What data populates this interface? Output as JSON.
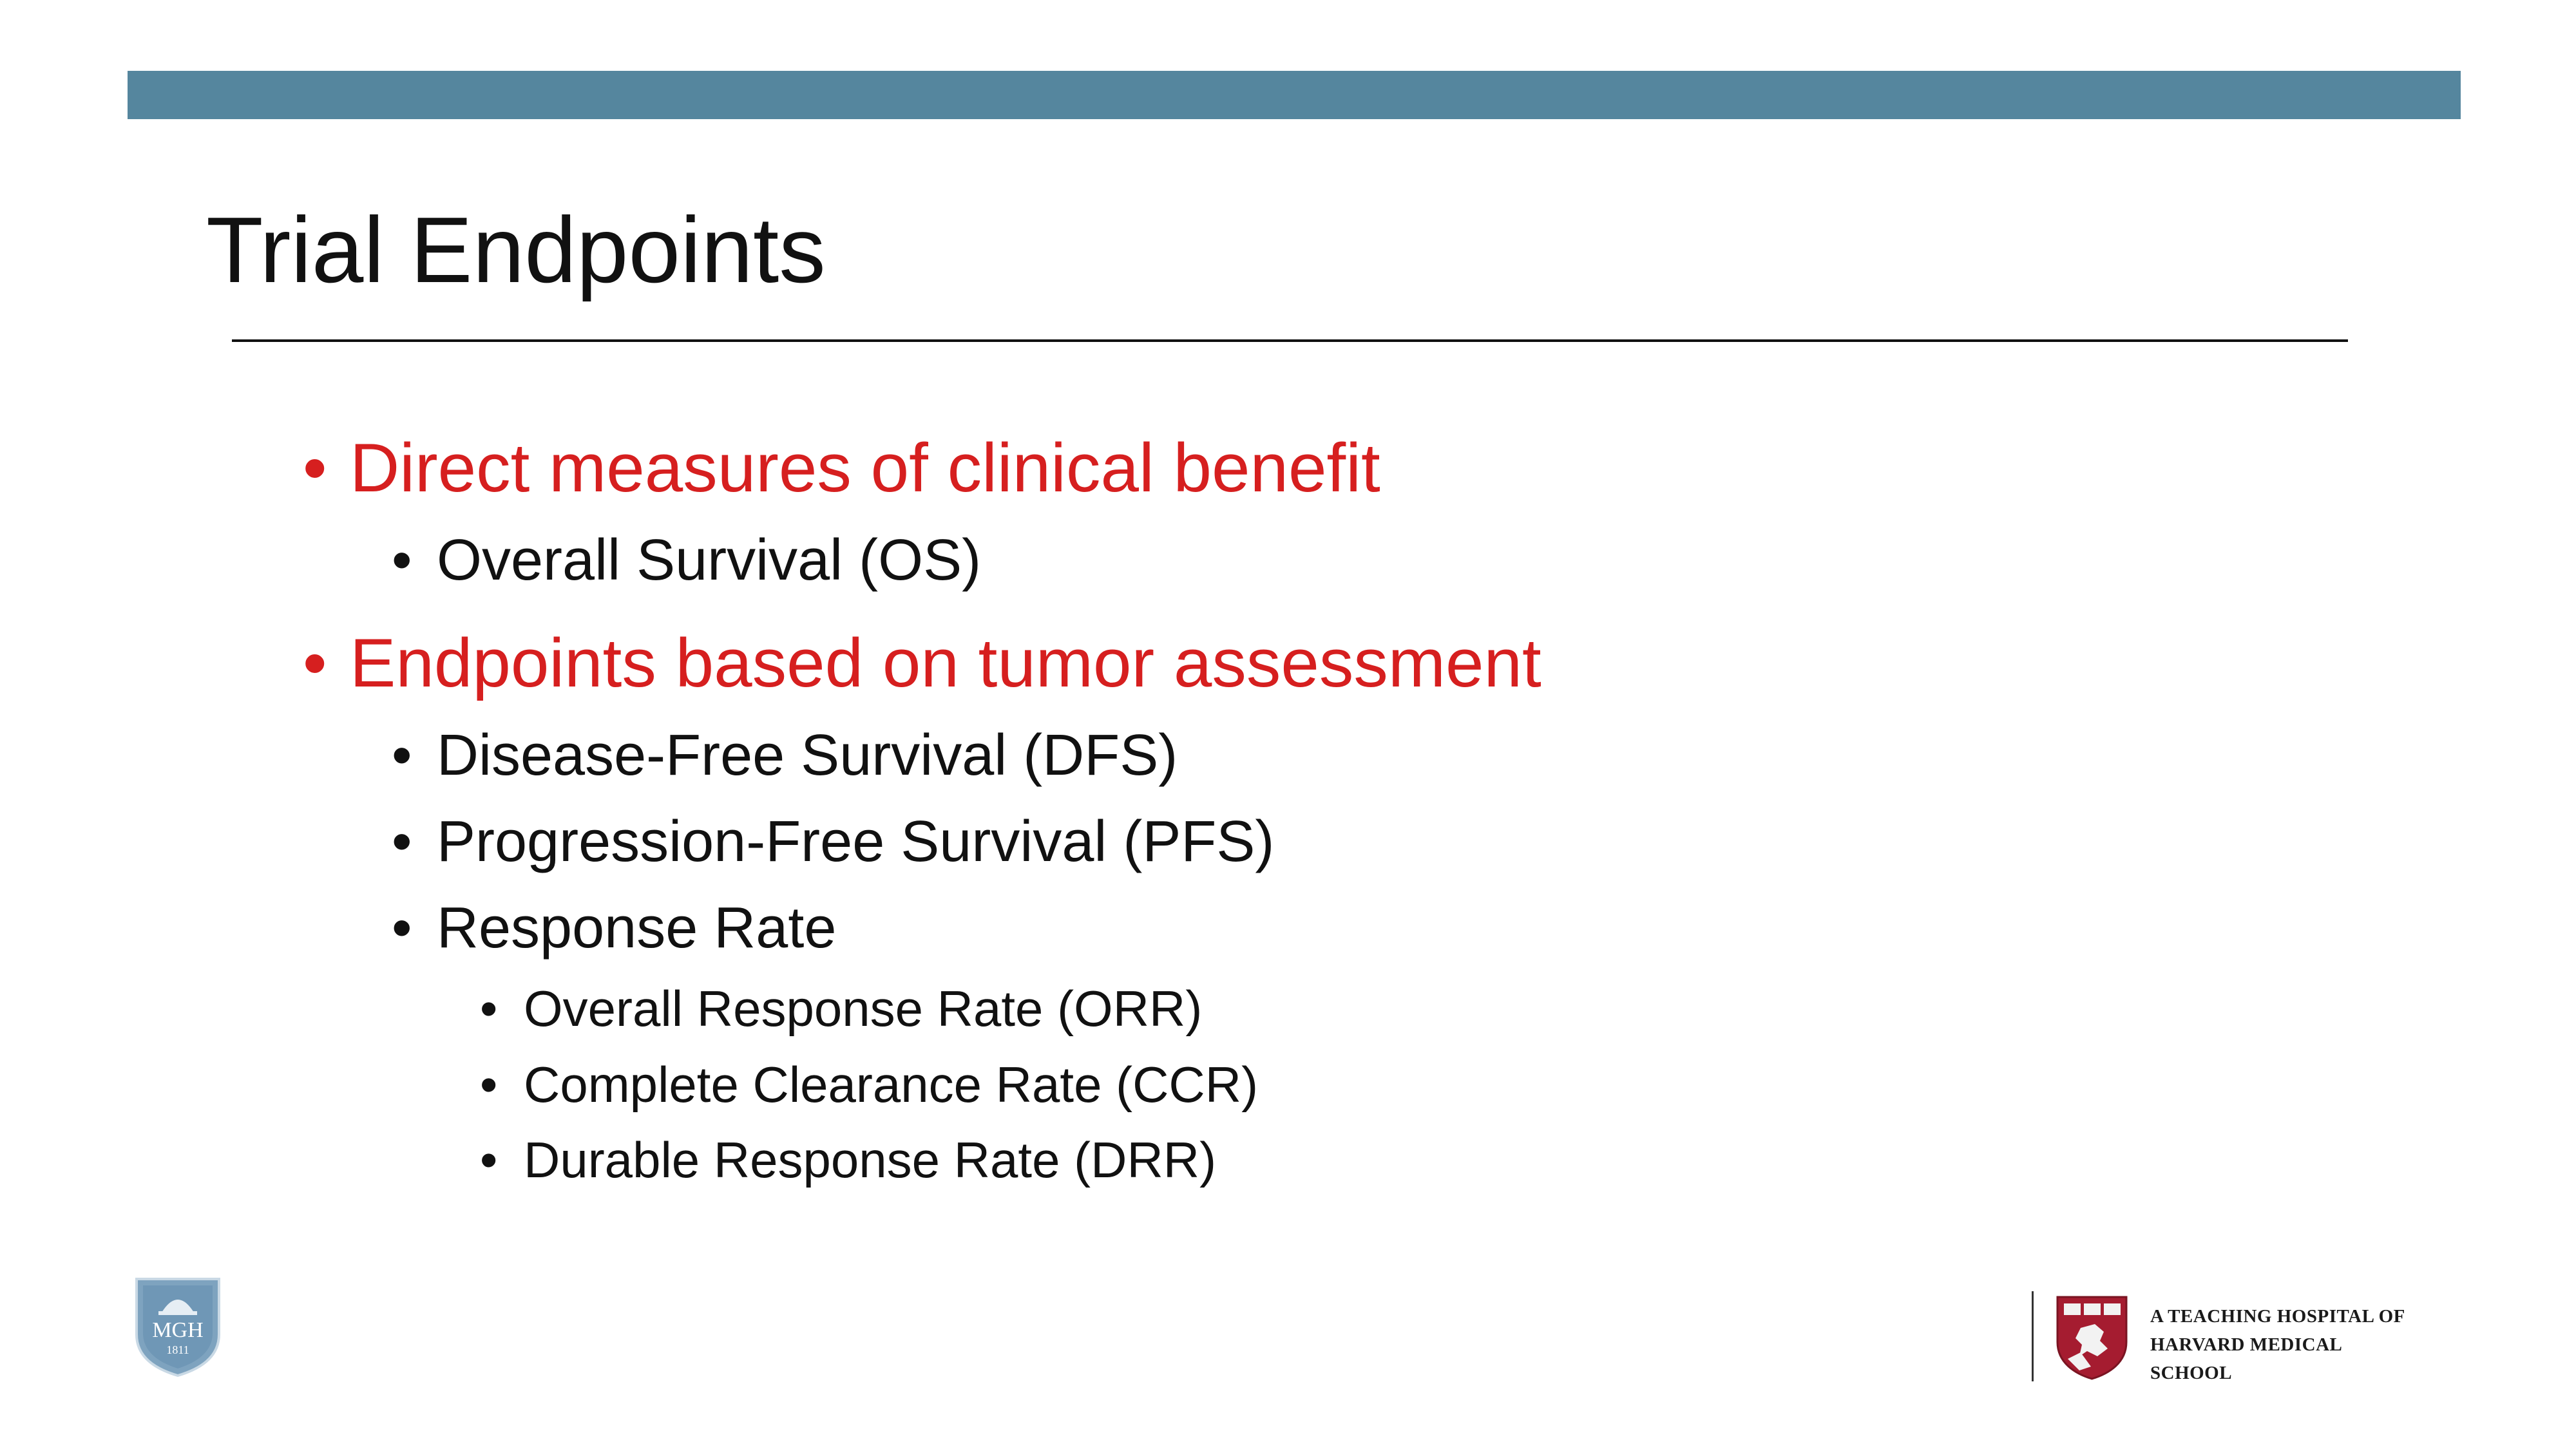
{
  "slide": {
    "title": "Trial Endpoints",
    "bullets": [
      {
        "level": 1,
        "text": "Direct measures of clinical benefit"
      },
      {
        "level": 2,
        "text": "Overall Survival (OS)"
      },
      {
        "level": 1,
        "text": "Endpoints based on tumor assessment"
      },
      {
        "level": 2,
        "text": "Disease-Free Survival (DFS)"
      },
      {
        "level": 2,
        "text": "Progression-Free Survival (PFS)"
      },
      {
        "level": 2,
        "text": "Response Rate"
      },
      {
        "level": 3,
        "text": "Overall Response Rate (ORR)"
      },
      {
        "level": 3,
        "text": "Complete Clearance Rate (CCR)"
      },
      {
        "level": 3,
        "text": "Durable Response Rate (DRR)"
      }
    ]
  },
  "footer": {
    "mgh_logo": {
      "icon": "mgh-shield-icon",
      "line1": "MGH",
      "line2": "1811"
    },
    "hms": {
      "icon": "harvard-veritas-shield-icon",
      "line1": "A TEACHING HOSPITAL OF",
      "line2": "HARVARD MEDICAL",
      "line3": "SCHOOL"
    }
  },
  "colors": {
    "top_bar": "#55869e",
    "level1_text": "#d61f1f",
    "body_text": "#111111"
  }
}
